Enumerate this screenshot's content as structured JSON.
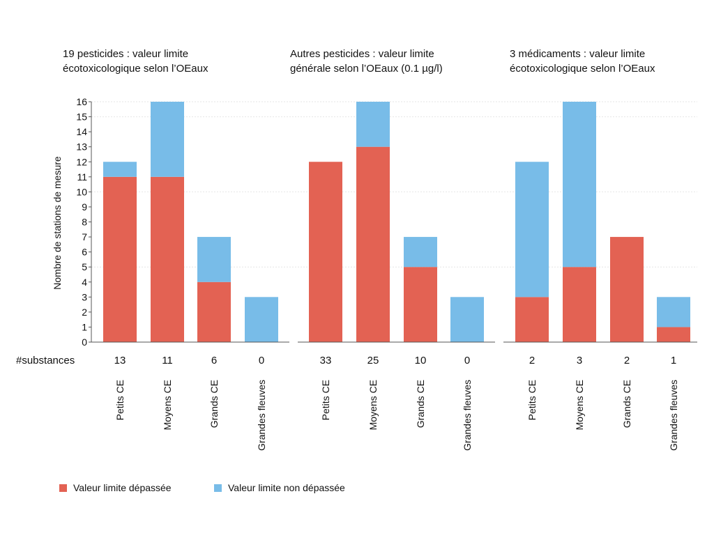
{
  "panel_titles": [
    {
      "line1": "19 pesticides : valeur limite",
      "line2": "écotoxicologique selon l’OEaux"
    },
    {
      "line1": "Autres pesticides : valeur limite",
      "line2": "générale selon l’OEaux (0.1 µg/l)"
    },
    {
      "line1": "3 médicaments : valeur limite",
      "line2": "écotoxicologique selon l’OEaux"
    }
  ],
  "substances_label": "#substances",
  "legend": {
    "exceeded": "Valeur limite dépassée",
    "not_exceeded": "Valeur limite non dépassée"
  },
  "colors": {
    "exceeded": "#e36253",
    "not_exceeded": "#78bce8",
    "grid": "#e6e6e6",
    "axis": "#555555"
  },
  "chart_data": {
    "type": "bar",
    "stacked": true,
    "ylabel": "Nombre de stations de mesure",
    "ylim": [
      0,
      16
    ],
    "yticks": [
      0,
      1,
      2,
      3,
      4,
      5,
      6,
      7,
      8,
      9,
      10,
      11,
      12,
      13,
      14,
      15,
      16
    ],
    "grid": "horizontal",
    "legend_position": "bottom-left",
    "groups": [
      {
        "categories": [
          "Petits CE",
          "Moyens CE",
          "Grands CE",
          "Grandes fleuves"
        ],
        "substances": [
          13,
          11,
          6,
          0
        ],
        "series": [
          {
            "name": "Valeur limite dépassée",
            "values": [
              11,
              11,
              4,
              0
            ]
          },
          {
            "name": "Valeur limite non dépassée",
            "values": [
              1,
              5,
              3,
              3
            ]
          }
        ]
      },
      {
        "categories": [
          "Petits CE",
          "Moyens CE",
          "Grands CE",
          "Grandes fleuves"
        ],
        "substances": [
          33,
          25,
          10,
          0
        ],
        "series": [
          {
            "name": "Valeur limite dépassée",
            "values": [
              12,
              13,
              5,
              0
            ]
          },
          {
            "name": "Valeur limite non dépassée",
            "values": [
              0,
              3,
              2,
              3
            ]
          }
        ]
      },
      {
        "categories": [
          "Petits CE",
          "Moyens CE",
          "Grands CE",
          "Grandes fleuves"
        ],
        "substances": [
          2,
          3,
          2,
          1
        ],
        "series": [
          {
            "name": "Valeur limite dépassée",
            "values": [
              3,
              5,
              7,
              1
            ]
          },
          {
            "name": "Valeur limite non dépassée",
            "values": [
              9,
              11,
              0,
              2
            ]
          }
        ]
      }
    ]
  }
}
